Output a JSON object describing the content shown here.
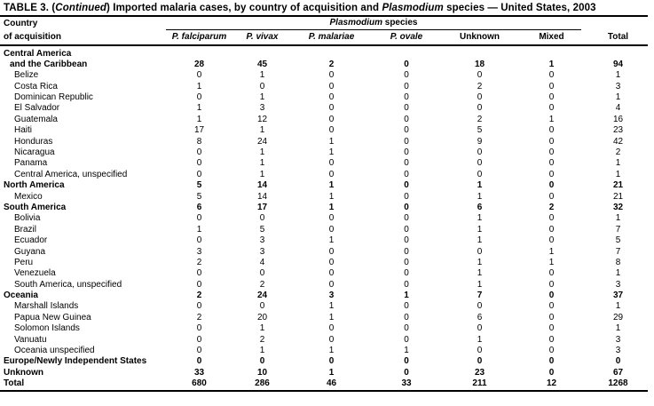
{
  "table": {
    "title_segments": [
      {
        "text": "TABLE 3. (",
        "italic": false
      },
      {
        "text": "Continued",
        "italic": true
      },
      {
        "text": ") Imported malaria cases, by country of acquisition and ",
        "italic": false
      },
      {
        "text": "Plasmodium",
        "italic": true
      },
      {
        "text": " species — United States, 2003",
        "italic": false
      }
    ],
    "header": {
      "country_line1": "Country",
      "country_line2": "of acquisition",
      "species_group_italic": "Plasmodium",
      "species_group_rest": " species",
      "columns": [
        {
          "label": "P. falciparum",
          "italic": true
        },
        {
          "label": "P. vivax",
          "italic": true
        },
        {
          "label": "P. malariae",
          "italic": true
        },
        {
          "label": "P. ovale",
          "italic": true
        },
        {
          "label": "Unknown",
          "italic": false
        },
        {
          "label": "Mixed",
          "italic": false
        },
        {
          "label": "Total",
          "italic": false
        }
      ]
    },
    "rows": [
      {
        "label": "Central America",
        "indent": 0,
        "bold": true,
        "values": [
          "",
          "",
          "",
          "",
          "",
          "",
          ""
        ]
      },
      {
        "label": "and the Caribbean",
        "indent": 1,
        "bold": true,
        "values": [
          "28",
          "45",
          "2",
          "0",
          "18",
          "1",
          "94"
        ]
      },
      {
        "label": "Belize",
        "indent": 2,
        "bold": false,
        "values": [
          "0",
          "1",
          "0",
          "0",
          "0",
          "0",
          "1"
        ]
      },
      {
        "label": "Costa Rica",
        "indent": 2,
        "bold": false,
        "values": [
          "1",
          "0",
          "0",
          "0",
          "2",
          "0",
          "3"
        ]
      },
      {
        "label": "Dominican Republic",
        "indent": 2,
        "bold": false,
        "values": [
          "0",
          "1",
          "0",
          "0",
          "0",
          "0",
          "1"
        ]
      },
      {
        "label": "El Salvador",
        "indent": 2,
        "bold": false,
        "values": [
          "1",
          "3",
          "0",
          "0",
          "0",
          "0",
          "4"
        ]
      },
      {
        "label": "Guatemala",
        "indent": 2,
        "bold": false,
        "values": [
          "1",
          "12",
          "0",
          "0",
          "2",
          "1",
          "16"
        ]
      },
      {
        "label": "Haiti",
        "indent": 2,
        "bold": false,
        "values": [
          "17",
          "1",
          "0",
          "0",
          "5",
          "0",
          "23"
        ]
      },
      {
        "label": "Honduras",
        "indent": 2,
        "bold": false,
        "values": [
          "8",
          "24",
          "1",
          "0",
          "9",
          "0",
          "42"
        ]
      },
      {
        "label": "Nicaragua",
        "indent": 2,
        "bold": false,
        "values": [
          "0",
          "1",
          "1",
          "0",
          "0",
          "0",
          "2"
        ]
      },
      {
        "label": "Panama",
        "indent": 2,
        "bold": false,
        "values": [
          "0",
          "1",
          "0",
          "0",
          "0",
          "0",
          "1"
        ]
      },
      {
        "label": "Central America, unspecified",
        "indent": 2,
        "bold": false,
        "values": [
          "0",
          "1",
          "0",
          "0",
          "0",
          "0",
          "1"
        ]
      },
      {
        "label": "North America",
        "indent": 0,
        "bold": true,
        "values": [
          "5",
          "14",
          "1",
          "0",
          "1",
          "0",
          "21"
        ]
      },
      {
        "label": "Mexico",
        "indent": 2,
        "bold": false,
        "values": [
          "5",
          "14",
          "1",
          "0",
          "1",
          "0",
          "21"
        ]
      },
      {
        "label": "South America",
        "indent": 0,
        "bold": true,
        "values": [
          "6",
          "17",
          "1",
          "0",
          "6",
          "2",
          "32"
        ]
      },
      {
        "label": "Bolivia",
        "indent": 2,
        "bold": false,
        "values": [
          "0",
          "0",
          "0",
          "0",
          "1",
          "0",
          "1"
        ]
      },
      {
        "label": "Brazil",
        "indent": 2,
        "bold": false,
        "values": [
          "1",
          "5",
          "0",
          "0",
          "1",
          "0",
          "7"
        ]
      },
      {
        "label": "Ecuador",
        "indent": 2,
        "bold": false,
        "values": [
          "0",
          "3",
          "1",
          "0",
          "1",
          "0",
          "5"
        ]
      },
      {
        "label": "Guyana",
        "indent": 2,
        "bold": false,
        "values": [
          "3",
          "3",
          "0",
          "0",
          "0",
          "1",
          "7"
        ]
      },
      {
        "label": "Peru",
        "indent": 2,
        "bold": false,
        "values": [
          "2",
          "4",
          "0",
          "0",
          "1",
          "1",
          "8"
        ]
      },
      {
        "label": "Venezuela",
        "indent": 2,
        "bold": false,
        "values": [
          "0",
          "0",
          "0",
          "0",
          "1",
          "0",
          "1"
        ]
      },
      {
        "label": "South America, unspecified",
        "indent": 2,
        "bold": false,
        "values": [
          "0",
          "2",
          "0",
          "0",
          "1",
          "0",
          "3"
        ]
      },
      {
        "label": "Oceania",
        "indent": 0,
        "bold": true,
        "values": [
          "2",
          "24",
          "3",
          "1",
          "7",
          "0",
          "37"
        ]
      },
      {
        "label": "Marshall Islands",
        "indent": 2,
        "bold": false,
        "values": [
          "0",
          "0",
          "1",
          "0",
          "0",
          "0",
          "1"
        ]
      },
      {
        "label": "Papua New Guinea",
        "indent": 2,
        "bold": false,
        "values": [
          "2",
          "20",
          "1",
          "0",
          "6",
          "0",
          "29"
        ]
      },
      {
        "label": "Solomon Islands",
        "indent": 2,
        "bold": false,
        "values": [
          "0",
          "1",
          "0",
          "0",
          "0",
          "0",
          "1"
        ]
      },
      {
        "label": "Vanuatu",
        "indent": 2,
        "bold": false,
        "values": [
          "0",
          "2",
          "0",
          "0",
          "1",
          "0",
          "3"
        ]
      },
      {
        "label": "Oceania unspecified",
        "indent": 2,
        "bold": false,
        "values": [
          "0",
          "1",
          "1",
          "1",
          "0",
          "0",
          "3"
        ]
      },
      {
        "label": "Europe/Newly Independent States",
        "indent": 0,
        "bold": true,
        "values": [
          "0",
          "0",
          "0",
          "0",
          "0",
          "0",
          "0"
        ]
      },
      {
        "label": "Unknown",
        "indent": 0,
        "bold": true,
        "values": [
          "33",
          "10",
          "1",
          "0",
          "23",
          "0",
          "67"
        ]
      },
      {
        "label": "Total",
        "indent": 0,
        "bold": true,
        "values": [
          "680",
          "286",
          "46",
          "33",
          "211",
          "12",
          "1268"
        ]
      }
    ]
  }
}
